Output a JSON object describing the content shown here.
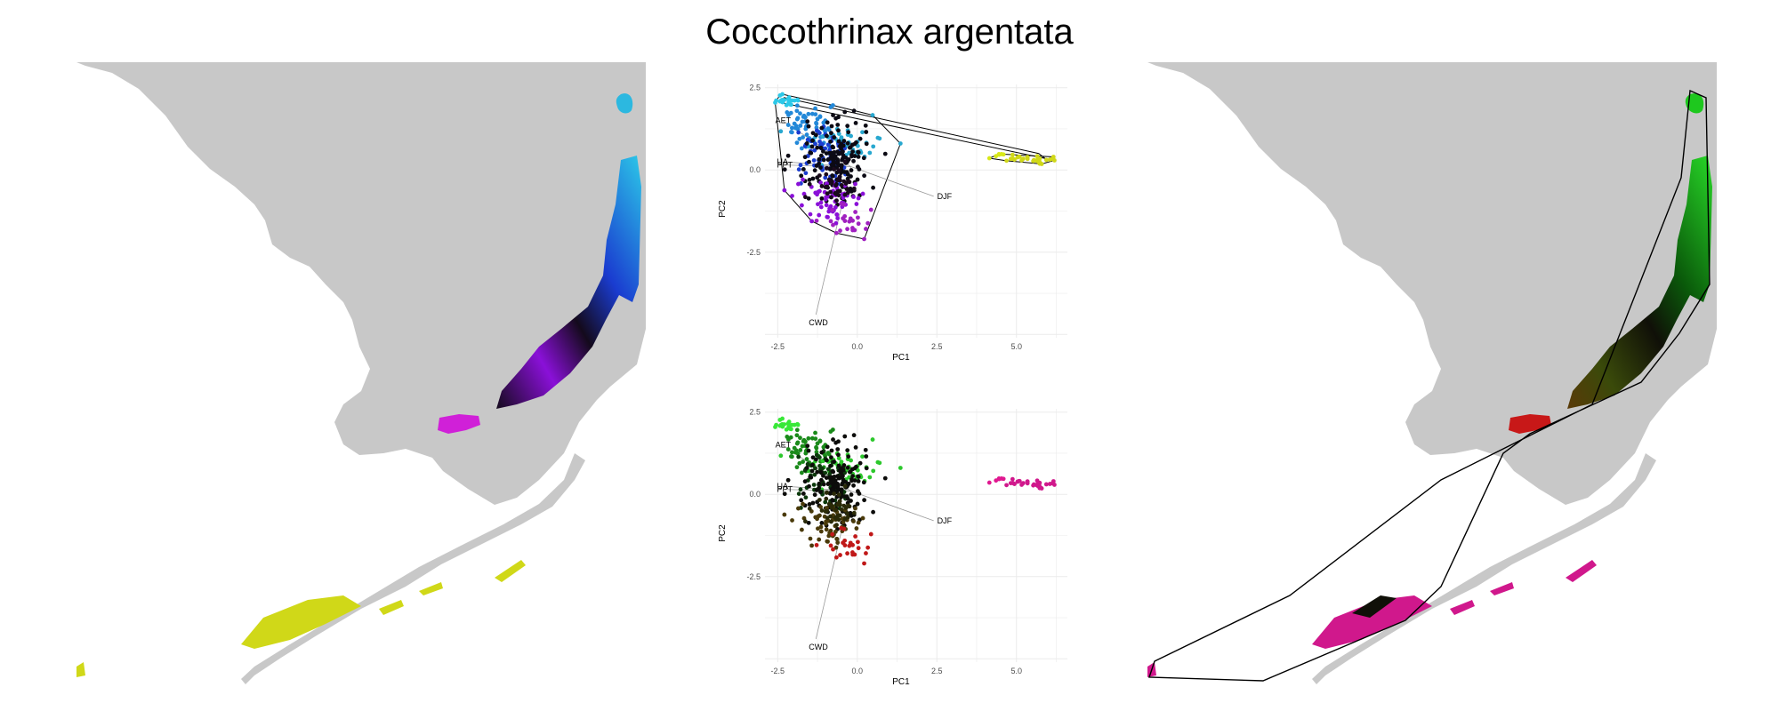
{
  "title": "Coccothrinax argentata",
  "colors": {
    "land": "#c8c8c8",
    "grid": "#ebebeb",
    "vector": "#9a9a9a",
    "hull": "#000000",
    "left_palette": [
      "#f0f018",
      "#d0d818",
      "#2cc8e8",
      "#1a3cd0",
      "#8a10d8",
      "#d020d8",
      "#140a1c"
    ],
    "right_palette": [
      "#1ee81e",
      "#0a7a0a",
      "#d81818",
      "#e01890",
      "#101008"
    ]
  },
  "maps": [
    {
      "name": "map-left",
      "style": "colored-occurrence-regions"
    },
    {
      "name": "map-right",
      "style": "colored-occurrence-regions-with-hull"
    }
  ],
  "chart_data": [
    {
      "type": "scatter",
      "name": "pca-top",
      "xlabel": "PC1",
      "ylabel": "PC2",
      "xlim": [
        -2.9,
        6.6
      ],
      "ylim": [
        -5.1,
        2.6
      ],
      "xticks": [
        -2.5,
        0.0,
        2.5,
        5.0
      ],
      "xtick_labels": [
        "-2.5",
        "0.0",
        "2.5",
        "5.0"
      ],
      "yticks": [
        2.5,
        0.0,
        -2.5
      ],
      "ytick_labels": [
        "2.5",
        "0.0",
        "-2.5"
      ],
      "vectors": [
        {
          "label": "AET",
          "x": -2.35,
          "y": 1.5
        },
        {
          "label": "UA",
          "x": -2.3,
          "y": 0.25
        },
        {
          "label": "PPT",
          "x": -2.3,
          "y": 0.15
        },
        {
          "label": "DJF",
          "x": 2.4,
          "y": -0.8
        },
        {
          "label": "CWD",
          "x": -1.3,
          "y": -4.4
        }
      ],
      "clusters": [
        {
          "cx": -2.2,
          "cy": 2.1,
          "sx": 0.18,
          "sy": 0.1,
          "n": 20,
          "color": "#2cc8e8"
        },
        {
          "cx": -1.5,
          "cy": 1.3,
          "sx": 0.4,
          "sy": 0.3,
          "n": 60,
          "color": "#2288d8"
        },
        {
          "cx": -0.3,
          "cy": 0.8,
          "sx": 0.5,
          "sy": 0.3,
          "n": 50,
          "color": "#28a8d0"
        },
        {
          "cx": -1.1,
          "cy": 0.4,
          "sx": 0.45,
          "sy": 0.45,
          "n": 60,
          "color": "#1a3cd0"
        },
        {
          "cx": -0.7,
          "cy": 0.3,
          "sx": 0.55,
          "sy": 0.6,
          "n": 160,
          "color": "#0c0a14"
        },
        {
          "cx": -0.9,
          "cy": -0.9,
          "sx": 0.55,
          "sy": 0.3,
          "n": 60,
          "color": "#8a10d8"
        },
        {
          "cx": -0.3,
          "cy": -1.5,
          "sx": 0.3,
          "sy": 0.25,
          "n": 25,
          "color": "#a020c0"
        },
        {
          "cx": -0.6,
          "cy": -0.5,
          "sx": 0.35,
          "sy": 0.3,
          "n": 40,
          "color": "#1a0a1c"
        },
        {
          "cx": 4.3,
          "cy": 0.45,
          "sx": 0.12,
          "sy": 0.05,
          "n": 6,
          "color": "#d8e818"
        },
        {
          "cx": 5.4,
          "cy": 0.32,
          "sx": 0.35,
          "sy": 0.07,
          "n": 30,
          "color": "#d0d818"
        }
      ]
    },
    {
      "type": "scatter",
      "name": "pca-bottom",
      "xlabel": "PC1",
      "ylabel": "PC2",
      "xlim": [
        -2.9,
        6.6
      ],
      "ylim": [
        -5.1,
        2.6
      ],
      "xticks": [
        -2.5,
        0.0,
        2.5,
        5.0
      ],
      "xtick_labels": [
        "-2.5",
        "0.0",
        "2.5",
        "5.0"
      ],
      "yticks": [
        2.5,
        0.0,
        -2.5
      ],
      "ytick_labels": [
        "2.5",
        "0.0",
        "-2.5"
      ],
      "vectors": [
        {
          "label": "AET",
          "x": -2.35,
          "y": 1.5
        },
        {
          "label": "UA",
          "x": -2.3,
          "y": 0.25
        },
        {
          "label": "PPT",
          "x": -2.3,
          "y": 0.15
        },
        {
          "label": "DJF",
          "x": 2.4,
          "y": -0.8
        },
        {
          "label": "CWD",
          "x": -1.3,
          "y": -4.4
        }
      ],
      "clusters": [
        {
          "cx": -2.2,
          "cy": 2.1,
          "sx": 0.18,
          "sy": 0.1,
          "n": 20,
          "color": "#38e838"
        },
        {
          "cx": -1.5,
          "cy": 1.3,
          "sx": 0.4,
          "sy": 0.3,
          "n": 60,
          "color": "#1a8a1a"
        },
        {
          "cx": -0.3,
          "cy": 0.8,
          "sx": 0.5,
          "sy": 0.3,
          "n": 50,
          "color": "#2cc82c"
        },
        {
          "cx": -1.1,
          "cy": 0.4,
          "sx": 0.45,
          "sy": 0.45,
          "n": 60,
          "color": "#0c3a0c"
        },
        {
          "cx": -0.7,
          "cy": 0.3,
          "sx": 0.55,
          "sy": 0.6,
          "n": 160,
          "color": "#0c0c0a"
        },
        {
          "cx": -0.9,
          "cy": -0.9,
          "sx": 0.55,
          "sy": 0.3,
          "n": 60,
          "color": "#4a3a0a"
        },
        {
          "cx": -0.3,
          "cy": -1.5,
          "sx": 0.3,
          "sy": 0.25,
          "n": 25,
          "color": "#c01818"
        },
        {
          "cx": -0.6,
          "cy": -0.5,
          "sx": 0.35,
          "sy": 0.3,
          "n": 40,
          "color": "#2a2a08"
        },
        {
          "cx": 4.3,
          "cy": 0.45,
          "sx": 0.12,
          "sy": 0.05,
          "n": 6,
          "color": "#e01890"
        },
        {
          "cx": 5.4,
          "cy": 0.32,
          "sx": 0.35,
          "sy": 0.07,
          "n": 30,
          "color": "#d0188c"
        }
      ]
    }
  ]
}
